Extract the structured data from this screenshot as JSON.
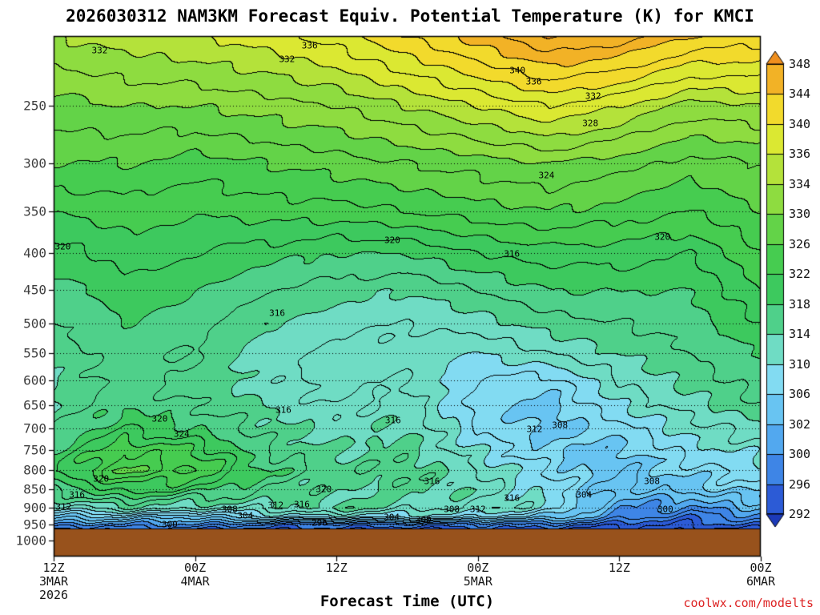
{
  "title": "2026030312 NAM3KM Forecast Equiv. Potential Temperature (K) for KMCI",
  "watermark": {
    "text": "coolwx.com/modelts",
    "color": "#dd2222"
  },
  "axes": {
    "x_title": "Forecast Time (UTC)",
    "x_ticks": [
      {
        "hour": 0,
        "label": "12Z",
        "sub": "3MAR",
        "sub2": "2026"
      },
      {
        "hour": 12,
        "label": "00Z",
        "sub": "4MAR"
      },
      {
        "hour": 24,
        "label": "12Z"
      },
      {
        "hour": 36,
        "label": "00Z",
        "sub": "5MAR"
      },
      {
        "hour": 48,
        "label": "12Z"
      },
      {
        "hour": 60,
        "label": "00Z",
        "sub": "6MAR"
      }
    ],
    "y_ticks": [
      250,
      300,
      350,
      400,
      450,
      500,
      550,
      600,
      650,
      700,
      750,
      800,
      850,
      900,
      950,
      1000
    ]
  },
  "colorbar": {
    "boundaries_top_to_bottom": [
      348,
      344,
      340,
      336,
      334,
      330,
      326,
      322,
      318,
      314,
      310,
      306,
      302,
      300,
      296,
      292
    ],
    "colors_bottom_to_top": [
      "#2c5bd6",
      "#3e85e6",
      "#52a8ef",
      "#68c4f2",
      "#82dbf2",
      "#6fdcc4",
      "#4fd08a",
      "#3dc95e",
      "#46cc50",
      "#63d348",
      "#8edc40",
      "#b4e23a",
      "#dbe832",
      "#f2da2c",
      "#f2b226"
    ],
    "below_color": "#1c3ab8",
    "above_color": "#ef8f1e"
  },
  "chart_data": {
    "type": "contour",
    "model": "NAM3KM",
    "run": "2026030312",
    "station": "KMCI",
    "variable": "Equivalent Potential Temperature",
    "units": "K",
    "contour_interval": 2,
    "label_interval": 4,
    "p_top": 200,
    "p_bottom": 1053,
    "surface_pressure": 963,
    "terrain_color": "#98521c",
    "x_hours": [
      0,
      6,
      12,
      18,
      24,
      30,
      36,
      42,
      48,
      54,
      60
    ],
    "pressure_levels": [
      200,
      250,
      300,
      350,
      400,
      450,
      500,
      550,
      600,
      650,
      700,
      750,
      800,
      850,
      900,
      925,
      950,
      975
    ],
    "values": [
      [
        334,
        335,
        336,
        337,
        339,
        342,
        345,
        348,
        347,
        344,
        343
      ],
      [
        329,
        330,
        330,
        331,
        332,
        334,
        336,
        338,
        336,
        333,
        334
      ],
      [
        326,
        326,
        325,
        326,
        327,
        328,
        329,
        330,
        329,
        327,
        328
      ],
      [
        322,
        323,
        322,
        323,
        323,
        324,
        325,
        326,
        325,
        324,
        326
      ],
      [
        319,
        321,
        320,
        319,
        318,
        318,
        320,
        321,
        321,
        320,
        324
      ],
      [
        317,
        319,
        318,
        316,
        315,
        314,
        316,
        318,
        318,
        318,
        322
      ],
      [
        316,
        318,
        317,
        314,
        313,
        312,
        313,
        315,
        316,
        317,
        320
      ],
      [
        315,
        317,
        316,
        313,
        311,
        311,
        310,
        312,
        314,
        316,
        318
      ],
      [
        314,
        317,
        315,
        313,
        311,
        312,
        308,
        307,
        312,
        315,
        317
      ],
      [
        314,
        318,
        316,
        314,
        312,
        313,
        307,
        305,
        310,
        313,
        316
      ],
      [
        316,
        320,
        318,
        315,
        313,
        314,
        308,
        305,
        307,
        311,
        313
      ],
      [
        318,
        324,
        322,
        316,
        314,
        315,
        310,
        306,
        305,
        309,
        311
      ],
      [
        320,
        326,
        324,
        318,
        315,
        316,
        312,
        308,
        304,
        307,
        309
      ],
      [
        316,
        321,
        319,
        316,
        314,
        315,
        313,
        309,
        303,
        305,
        307
      ],
      [
        311,
        314,
        312,
        313,
        315,
        313,
        312,
        310,
        301,
        299,
        303
      ],
      [
        305,
        306,
        305,
        308,
        310,
        309,
        308,
        306,
        299,
        297,
        300
      ],
      [
        299,
        300,
        299,
        298,
        297,
        297,
        298,
        297,
        295,
        294,
        296
      ],
      [
        294,
        294,
        293,
        293,
        292,
        292,
        293,
        292,
        292,
        291,
        293
      ]
    ],
    "contour_labels": [
      {
        "t": "332",
        "fx": 0.065,
        "fy": 0.027
      },
      {
        "t": "336",
        "fx": 0.362,
        "fy": 0.018
      },
      {
        "t": "332",
        "fx": 0.33,
        "fy": 0.044
      },
      {
        "t": "340",
        "fx": 0.656,
        "fy": 0.066
      },
      {
        "t": "336",
        "fx": 0.679,
        "fy": 0.087
      },
      {
        "t": "332",
        "fx": 0.763,
        "fy": 0.116
      },
      {
        "t": "328",
        "fx": 0.759,
        "fy": 0.167
      },
      {
        "t": "324",
        "fx": 0.697,
        "fy": 0.267
      },
      {
        "t": "320",
        "fx": 0.013,
        "fy": 0.405
      },
      {
        "t": "320",
        "fx": 0.479,
        "fy": 0.393
      },
      {
        "t": "316",
        "fx": 0.648,
        "fy": 0.419
      },
      {
        "t": "320",
        "fx": 0.861,
        "fy": 0.386
      },
      {
        "t": "316",
        "fx": 0.316,
        "fy": 0.532
      },
      {
        "t": "316",
        "fx": 0.325,
        "fy": 0.719
      },
      {
        "t": "320",
        "fx": 0.15,
        "fy": 0.735
      },
      {
        "t": "324",
        "fx": 0.181,
        "fy": 0.764
      },
      {
        "t": "316",
        "fx": 0.48,
        "fy": 0.739
      },
      {
        "t": "312",
        "fx": 0.68,
        "fy": 0.755
      },
      {
        "t": "308",
        "fx": 0.716,
        "fy": 0.748
      },
      {
        "t": "320",
        "fx": 0.067,
        "fy": 0.85
      },
      {
        "t": "316",
        "fx": 0.033,
        "fy": 0.881
      },
      {
        "t": "312",
        "fx": 0.014,
        "fy": 0.904
      },
      {
        "t": "320",
        "fx": 0.382,
        "fy": 0.87
      },
      {
        "t": "316",
        "fx": 0.535,
        "fy": 0.855
      },
      {
        "t": "312",
        "fx": 0.314,
        "fy": 0.901
      },
      {
        "t": "316",
        "fx": 0.351,
        "fy": 0.9
      },
      {
        "t": "308",
        "fx": 0.846,
        "fy": 0.856
      },
      {
        "t": "304",
        "fx": 0.75,
        "fy": 0.882
      },
      {
        "t": "300",
        "fx": 0.865,
        "fy": 0.909
      },
      {
        "t": "308",
        "fx": 0.249,
        "fy": 0.909
      },
      {
        "t": "304",
        "fx": 0.271,
        "fy": 0.921
      },
      {
        "t": "300",
        "fx": 0.164,
        "fy": 0.939
      },
      {
        "t": "296",
        "fx": 0.376,
        "fy": 0.935
      },
      {
        "t": "304",
        "fx": 0.478,
        "fy": 0.924
      },
      {
        "t": "300",
        "fx": 0.523,
        "fy": 0.929
      },
      {
        "t": "308",
        "fx": 0.563,
        "fy": 0.909
      },
      {
        "t": "312",
        "fx": 0.6,
        "fy": 0.909
      },
      {
        "t": "316",
        "fx": 0.648,
        "fy": 0.887
      }
    ]
  }
}
